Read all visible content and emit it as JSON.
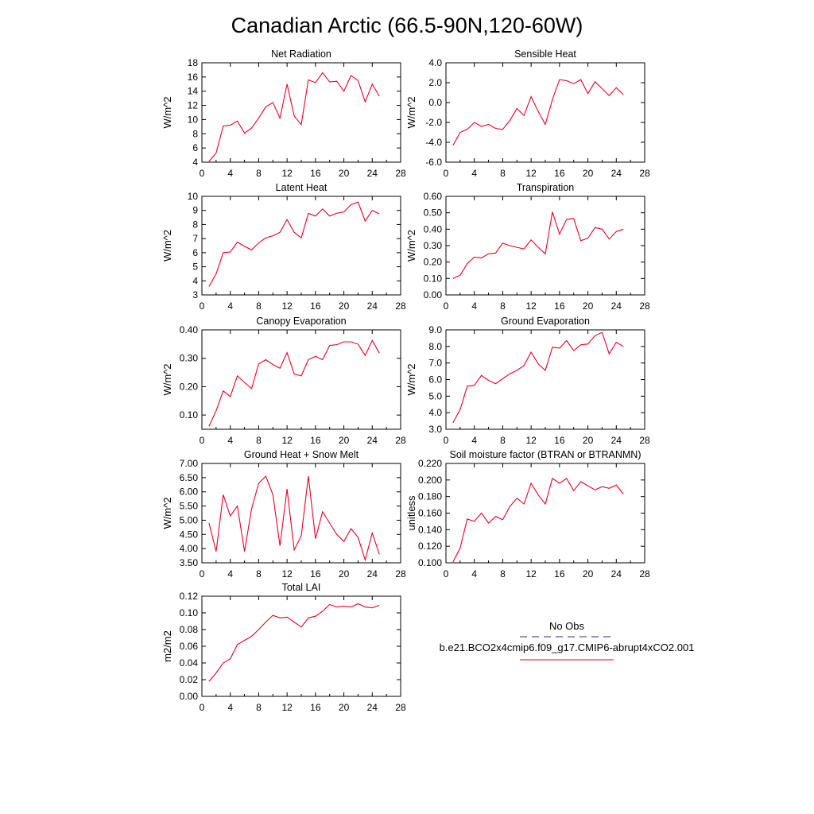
{
  "figure": {
    "title": "Canadian Arctic (66.5-90N,120-60W)"
  },
  "legend": {
    "items": [
      {
        "label": "No Obs",
        "color": "#2b2b8a",
        "dash": "dashed"
      },
      {
        "label": "b.e21.BCO2x4cmip6.f09_g17.CMIP6-abrupt4xCO2.001",
        "color": "#e8002a",
        "dash": "solid"
      }
    ]
  },
  "chart_data": [
    {
      "type": "line",
      "title": "Net Radiation",
      "ylabel": "W/m^2",
      "xlim": [
        0,
        28
      ],
      "ylim": [
        4,
        18
      ],
      "xticks": [
        0,
        4,
        8,
        12,
        16,
        20,
        24,
        28
      ],
      "yticks": [
        "4",
        "6",
        "8",
        "10",
        "12",
        "14",
        "16",
        "18"
      ],
      "x": [
        1,
        2,
        3,
        4,
        5,
        6,
        7,
        8,
        9,
        10,
        11,
        12,
        13,
        14,
        15,
        16,
        17,
        18,
        19,
        20,
        21,
        22,
        23,
        24,
        25
      ],
      "series": [
        {
          "values": [
            4.1,
            5.3,
            9.1,
            9.2,
            9.8,
            8.1,
            8.8,
            10.2,
            11.8,
            12.4,
            10.2,
            15.0,
            10.5,
            9.3,
            15.6,
            15.2,
            16.6,
            15.3,
            15.4,
            14.0,
            16.2,
            15.5,
            12.5,
            15.0,
            13.3
          ],
          "color": "#e8002a"
        }
      ]
    },
    {
      "type": "line",
      "title": "Sensible Heat",
      "ylabel": "W/m^2",
      "xlim": [
        0,
        28
      ],
      "ylim": [
        -6,
        4
      ],
      "xticks": [
        0,
        4,
        8,
        12,
        16,
        20,
        24,
        28
      ],
      "yticks": [
        "-6.0",
        "-4.0",
        "-2.0",
        "0.0",
        "2.0",
        "4.0"
      ],
      "x": [
        1,
        2,
        3,
        4,
        5,
        6,
        7,
        8,
        9,
        10,
        11,
        12,
        13,
        14,
        15,
        16,
        17,
        18,
        19,
        20,
        21,
        22,
        23,
        24,
        25
      ],
      "series": [
        {
          "values": [
            -4.3,
            -3.0,
            -2.7,
            -2.0,
            -2.4,
            -2.2,
            -2.6,
            -2.7,
            -1.8,
            -0.6,
            -1.3,
            0.6,
            -0.9,
            -2.2,
            0.3,
            2.3,
            2.2,
            1.9,
            2.3,
            0.9,
            2.1,
            1.4,
            0.7,
            1.5,
            0.8
          ],
          "color": "#e8002a"
        }
      ]
    },
    {
      "type": "line",
      "title": "Latent Heat",
      "ylabel": "W/m^2",
      "xlim": [
        0,
        28
      ],
      "ylim": [
        3,
        10
      ],
      "xticks": [
        0,
        4,
        8,
        12,
        16,
        20,
        24,
        28
      ],
      "yticks": [
        "3",
        "4",
        "5",
        "6",
        "7",
        "8",
        "9",
        "10"
      ],
      "x": [
        1,
        2,
        3,
        4,
        5,
        6,
        7,
        8,
        9,
        10,
        11,
        12,
        13,
        14,
        15,
        16,
        17,
        18,
        19,
        20,
        21,
        22,
        23,
        24,
        25
      ],
      "series": [
        {
          "values": [
            3.6,
            4.5,
            6.0,
            6.05,
            6.75,
            6.45,
            6.2,
            6.7,
            7.05,
            7.2,
            7.45,
            8.35,
            7.45,
            7.05,
            8.8,
            8.6,
            9.1,
            8.6,
            8.8,
            8.9,
            9.4,
            9.6,
            8.25,
            9.0,
            8.75
          ],
          "color": "#e8002a"
        }
      ]
    },
    {
      "type": "line",
      "title": "Transpiration",
      "ylabel": "W/m^2",
      "xlim": [
        0,
        28
      ],
      "ylim": [
        0,
        0.6
      ],
      "xticks": [
        0,
        4,
        8,
        12,
        16,
        20,
        24,
        28
      ],
      "yticks": [
        "0.00",
        "0.10",
        "0.20",
        "0.30",
        "0.40",
        "0.50",
        "0.60"
      ],
      "x": [
        1,
        2,
        3,
        4,
        5,
        6,
        7,
        8,
        9,
        10,
        11,
        12,
        13,
        14,
        15,
        16,
        17,
        18,
        19,
        20,
        21,
        22,
        23,
        24,
        25
      ],
      "series": [
        {
          "values": [
            0.1,
            0.12,
            0.19,
            0.23,
            0.225,
            0.25,
            0.255,
            0.315,
            0.3,
            0.29,
            0.28,
            0.335,
            0.29,
            0.25,
            0.505,
            0.37,
            0.46,
            0.465,
            0.33,
            0.345,
            0.41,
            0.4,
            0.34,
            0.385,
            0.4
          ],
          "color": "#e8002a"
        }
      ]
    },
    {
      "type": "line",
      "title": "Canopy Evaporation",
      "ylabel": "W/m^2",
      "xlim": [
        0,
        28
      ],
      "ylim": [
        0.05,
        0.4
      ],
      "xticks": [
        0,
        4,
        8,
        12,
        16,
        20,
        24,
        28
      ],
      "yticks": [
        "0.10",
        "0.20",
        "0.30",
        "0.40"
      ],
      "ytick_values": [
        0.1,
        0.2,
        0.3,
        0.4
      ],
      "x": [
        1,
        2,
        3,
        4,
        5,
        6,
        7,
        8,
        9,
        10,
        11,
        12,
        13,
        14,
        15,
        16,
        17,
        18,
        19,
        20,
        21,
        22,
        23,
        24,
        25
      ],
      "series": [
        {
          "values": [
            0.06,
            0.115,
            0.185,
            0.165,
            0.238,
            0.215,
            0.193,
            0.28,
            0.295,
            0.278,
            0.265,
            0.32,
            0.245,
            0.238,
            0.295,
            0.307,
            0.295,
            0.345,
            0.348,
            0.358,
            0.358,
            0.35,
            0.31,
            0.363,
            0.318
          ],
          "color": "#e8002a"
        }
      ]
    },
    {
      "type": "line",
      "title": "Ground Evaporation",
      "ylabel": "W/m^2",
      "xlim": [
        0,
        28
      ],
      "ylim": [
        3,
        9
      ],
      "xticks": [
        0,
        4,
        8,
        12,
        16,
        20,
        24,
        28
      ],
      "yticks": [
        "3.0",
        "4.0",
        "5.0",
        "6.0",
        "7.0",
        "8.0",
        "9.0"
      ],
      "x": [
        1,
        2,
        3,
        4,
        5,
        6,
        7,
        8,
        9,
        10,
        11,
        12,
        13,
        14,
        15,
        16,
        17,
        18,
        19,
        20,
        21,
        22,
        23,
        24,
        25
      ],
      "series": [
        {
          "values": [
            3.4,
            4.2,
            5.6,
            5.65,
            6.25,
            5.95,
            5.75,
            6.05,
            6.35,
            6.55,
            6.85,
            7.65,
            6.95,
            6.55,
            7.95,
            7.9,
            8.35,
            7.75,
            8.1,
            8.15,
            8.65,
            8.85,
            7.55,
            8.25,
            8.0
          ],
          "color": "#e8002a"
        }
      ]
    },
    {
      "type": "line",
      "title": "Ground Heat + Snow Melt",
      "ylabel": "W/m^2",
      "xlim": [
        0,
        28
      ],
      "ylim": [
        3.5,
        7
      ],
      "xticks": [
        0,
        4,
        8,
        12,
        16,
        20,
        24,
        28
      ],
      "yticks": [
        "3.50",
        "4.00",
        "4.50",
        "5.00",
        "5.50",
        "6.00",
        "6.50",
        "7.00"
      ],
      "x": [
        1,
        2,
        3,
        4,
        5,
        6,
        7,
        8,
        9,
        10,
        11,
        12,
        13,
        14,
        15,
        16,
        17,
        18,
        19,
        20,
        21,
        22,
        23,
        24,
        25
      ],
      "series": [
        {
          "values": [
            4.9,
            3.9,
            5.9,
            5.15,
            5.5,
            3.9,
            5.4,
            6.3,
            6.55,
            5.9,
            4.1,
            6.1,
            3.95,
            4.45,
            6.55,
            4.35,
            5.3,
            4.9,
            4.5,
            4.25,
            4.7,
            4.4,
            3.6,
            4.55,
            3.8
          ],
          "color": "#e8002a"
        }
      ]
    },
    {
      "type": "line",
      "title": "Soil moisture factor (BTRAN or BTRANMN)",
      "ylabel": "unitless",
      "xlim": [
        0,
        28
      ],
      "ylim": [
        0.1,
        0.22
      ],
      "xticks": [
        0,
        4,
        8,
        12,
        16,
        20,
        24,
        28
      ],
      "yticks": [
        "0.100",
        "0.120",
        "0.140",
        "0.160",
        "0.180",
        "0.200",
        "0.220"
      ],
      "x": [
        1,
        2,
        3,
        4,
        5,
        6,
        7,
        8,
        9,
        10,
        11,
        12,
        13,
        14,
        15,
        16,
        17,
        18,
        19,
        20,
        21,
        22,
        23,
        24,
        25
      ],
      "series": [
        {
          "values": [
            0.101,
            0.118,
            0.153,
            0.15,
            0.16,
            0.148,
            0.156,
            0.152,
            0.168,
            0.178,
            0.171,
            0.196,
            0.182,
            0.171,
            0.202,
            0.196,
            0.202,
            0.187,
            0.198,
            0.193,
            0.188,
            0.192,
            0.19,
            0.194,
            0.183
          ],
          "color": "#e8002a"
        }
      ]
    },
    {
      "type": "line",
      "title": "Total LAI",
      "ylabel": "m2/m2",
      "xlim": [
        0,
        28
      ],
      "ylim": [
        0,
        0.12
      ],
      "xticks": [
        0,
        4,
        8,
        12,
        16,
        20,
        24,
        28
      ],
      "yticks": [
        "0.00",
        "0.02",
        "0.04",
        "0.06",
        "0.08",
        "0.10",
        "0.12"
      ],
      "x": [
        1,
        2,
        3,
        4,
        5,
        6,
        7,
        8,
        9,
        10,
        11,
        12,
        13,
        14,
        15,
        16,
        17,
        18,
        19,
        20,
        21,
        22,
        23,
        24,
        25
      ],
      "series": [
        {
          "values": [
            0.018,
            0.028,
            0.04,
            0.045,
            0.062,
            0.067,
            0.072,
            0.08,
            0.089,
            0.097,
            0.094,
            0.095,
            0.089,
            0.083,
            0.094,
            0.096,
            0.102,
            0.11,
            0.107,
            0.108,
            0.107,
            0.111,
            0.107,
            0.106,
            0.109
          ],
          "color": "#e8002a"
        }
      ]
    }
  ]
}
